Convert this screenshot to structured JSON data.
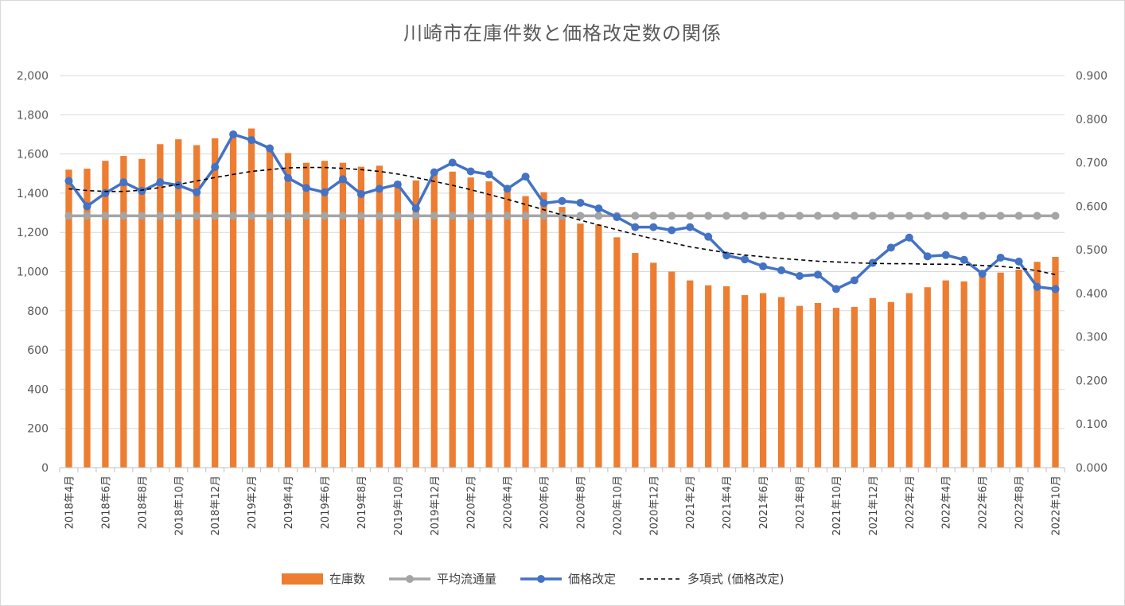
{
  "chart_data": {
    "type": "bar",
    "title": "川崎市在庫件数と価格改定数の関係",
    "x": [
      "2018年4月",
      "2018年5月",
      "2018年6月",
      "2018年7月",
      "2018年8月",
      "2018年9月",
      "2018年10月",
      "2018年11月",
      "2018年12月",
      "2019年1月",
      "2019年2月",
      "2019年3月",
      "2019年4月",
      "2019年5月",
      "2019年6月",
      "2019年7月",
      "2019年8月",
      "2019年9月",
      "2019年10月",
      "2019年11月",
      "2019年12月",
      "2020年1月",
      "2020年2月",
      "2020年3月",
      "2020年4月",
      "2020年5月",
      "2020年6月",
      "2020年7月",
      "2020年8月",
      "2020年9月",
      "2020年10月",
      "2020年11月",
      "2020年12月",
      "2021年1月",
      "2021年2月",
      "2021年3月",
      "2021年4月",
      "2021年5月",
      "2021年6月",
      "2021年7月",
      "2021年8月",
      "2021年9月",
      "2021年10月",
      "2021年11月",
      "2021年12月",
      "2022年1月",
      "2022年2月",
      "2022年3月",
      "2022年4月",
      "2022年5月",
      "2022年6月",
      "2022年7月",
      "2022年8月",
      "2022年9月",
      "2022年10月"
    ],
    "x_tick_labels": [
      "2018年4月",
      "2018年6月",
      "2018年8月",
      "2018年10月",
      "2018年12月",
      "2019年2月",
      "2019年4月",
      "2019年6月",
      "2019年8月",
      "2019年10月",
      "2019年12月",
      "2020年2月",
      "2020年4月",
      "2020年6月",
      "2020年8月",
      "2020年10月",
      "2020年12月",
      "2021年2月",
      "2021年4月",
      "2021年6月",
      "2021年8月",
      "2021年10月",
      "2021年12月",
      "2022年2月",
      "2022年4月",
      "2022年6月",
      "2022年8月",
      "2022年10月"
    ],
    "y_left": {
      "ylim": [
        0,
        2000
      ],
      "ticks": [
        "0",
        "200",
        "400",
        "600",
        "800",
        "1,000",
        "1,200",
        "1,400",
        "1,600",
        "1,800",
        "2,000"
      ]
    },
    "y_right": {
      "ylim": [
        0,
        0.9
      ],
      "ticks": [
        "0.000",
        "0.100",
        "0.200",
        "0.300",
        "0.400",
        "0.500",
        "0.600",
        "0.700",
        "0.800",
        "0.900"
      ]
    },
    "grid": true,
    "legend_position": "bottom",
    "series": [
      {
        "name": "在庫数",
        "type": "bar",
        "axis": "left",
        "color": "#ED7D31",
        "values": [
          1520,
          1525,
          1565,
          1590,
          1575,
          1650,
          1675,
          1645,
          1680,
          1690,
          1730,
          1620,
          1605,
          1555,
          1565,
          1555,
          1535,
          1540,
          1460,
          1465,
          1510,
          1510,
          1480,
          1460,
          1420,
          1385,
          1405,
          1330,
          1245,
          1240,
          1175,
          1095,
          1045,
          1000,
          955,
          930,
          925,
          880,
          890,
          870,
          825,
          840,
          815,
          820,
          865,
          845,
          890,
          920,
          955,
          950,
          990,
          995,
          1010,
          1050,
          1075
        ]
      },
      {
        "name": "平均流通量",
        "type": "line",
        "axis": "right",
        "color": "#A5A5A5",
        "values": [
          0.578,
          0.578,
          0.578,
          0.578,
          0.578,
          0.578,
          0.578,
          0.578,
          0.578,
          0.578,
          0.578,
          0.578,
          0.578,
          0.578,
          0.578,
          0.578,
          0.578,
          0.578,
          0.578,
          0.578,
          0.578,
          0.578,
          0.578,
          0.578,
          0.578,
          0.578,
          0.578,
          0.578,
          0.578,
          0.578,
          0.578,
          0.578,
          0.578,
          0.578,
          0.578,
          0.578,
          0.578,
          0.578,
          0.578,
          0.578,
          0.578,
          0.578,
          0.578,
          0.578,
          0.578,
          0.578,
          0.578,
          0.578,
          0.578,
          0.578,
          0.578,
          0.578,
          0.578,
          0.578,
          0.578
        ]
      },
      {
        "name": "価格改定",
        "type": "line",
        "axis": "right",
        "color": "#4472C4",
        "values": [
          0.658,
          0.6,
          0.63,
          0.655,
          0.635,
          0.655,
          0.648,
          0.632,
          0.69,
          0.765,
          0.752,
          0.733,
          0.665,
          0.642,
          0.632,
          0.662,
          0.628,
          0.64,
          0.65,
          0.595,
          0.678,
          0.7,
          0.68,
          0.673,
          0.64,
          0.668,
          0.607,
          0.612,
          0.608,
          0.595,
          0.575,
          0.552,
          0.552,
          0.545,
          0.552,
          0.53,
          0.487,
          0.478,
          0.462,
          0.453,
          0.44,
          0.443,
          0.41,
          0.43,
          0.47,
          0.505,
          0.528,
          0.485,
          0.488,
          0.477,
          0.445,
          0.482,
          0.473,
          0.415,
          0.41
        ]
      },
      {
        "name": "多項式 (価格改定)",
        "type": "trendline",
        "axis": "right",
        "color": "#000000",
        "values": [
          0.64,
          0.636,
          0.634,
          0.634,
          0.637,
          0.643,
          0.65,
          0.658,
          0.666,
          0.673,
          0.68,
          0.684,
          0.688,
          0.689,
          0.689,
          0.687,
          0.684,
          0.68,
          0.674,
          0.666,
          0.657,
          0.648,
          0.638,
          0.627,
          0.616,
          0.604,
          0.592,
          0.58,
          0.568,
          0.557,
          0.546,
          0.535,
          0.525,
          0.516,
          0.507,
          0.5,
          0.493,
          0.488,
          0.484,
          0.48,
          0.477,
          0.474,
          0.472,
          0.47,
          0.469,
          0.468,
          0.468,
          0.467,
          0.467,
          0.466,
          0.464,
          0.462,
          0.458,
          0.452,
          0.443
        ]
      }
    ]
  }
}
